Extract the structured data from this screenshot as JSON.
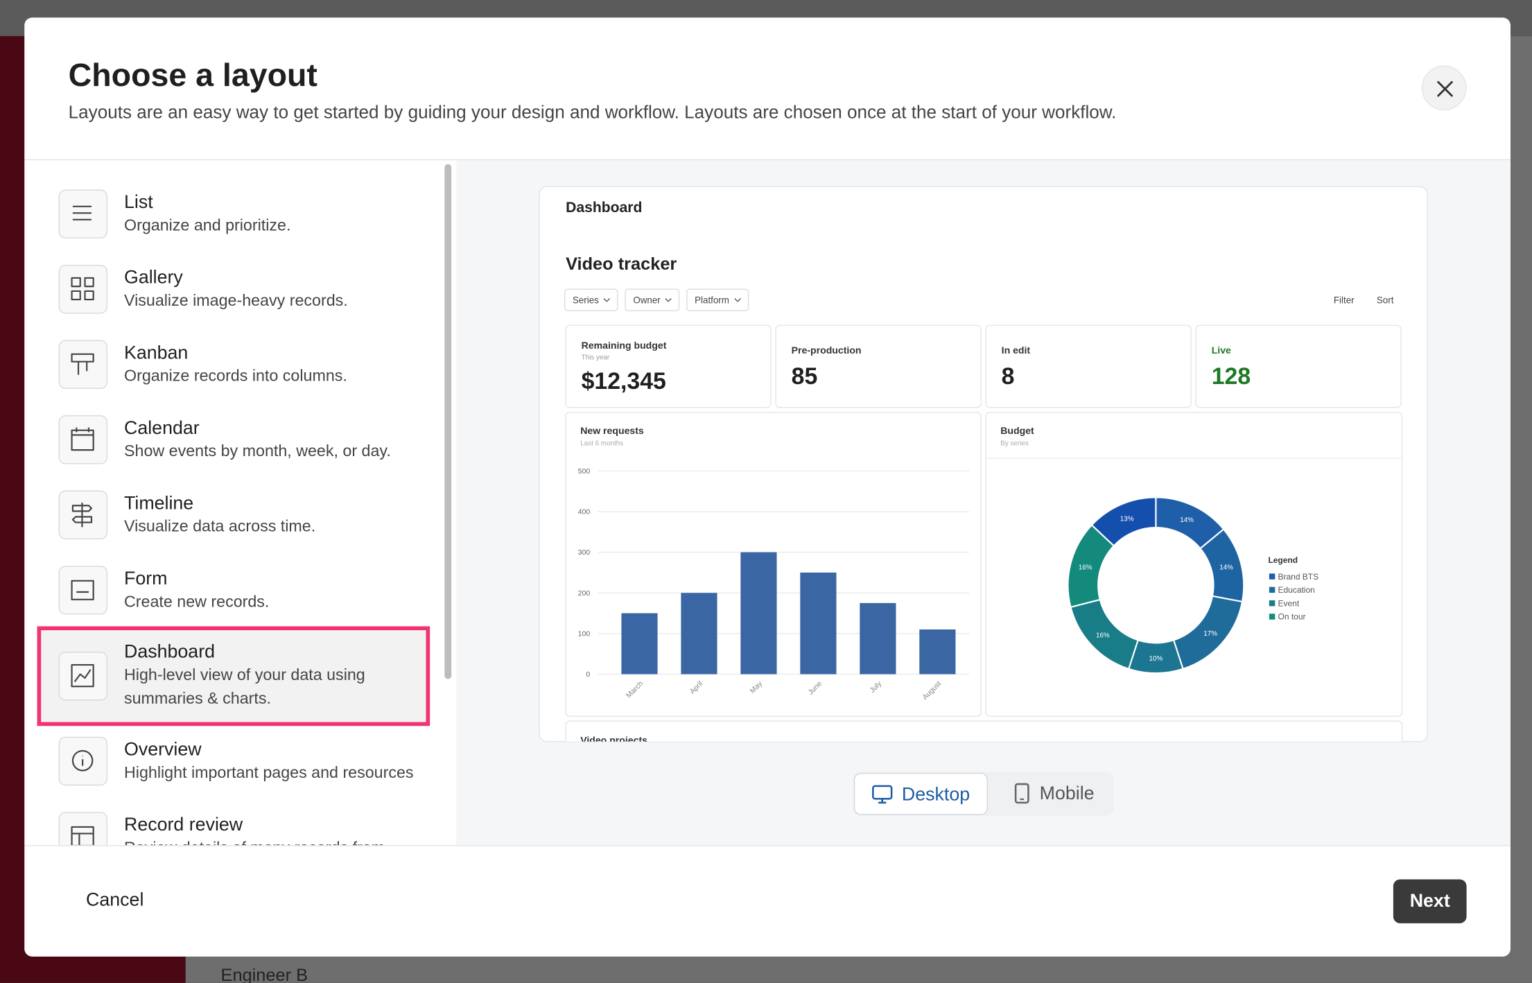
{
  "background": {
    "text": "Engineer B"
  },
  "header": {
    "title": "Choose a layout",
    "subtitle": "Layouts are an easy way to get started by guiding your design and workflow. Layouts are chosen once at the start of your workflow."
  },
  "layouts": [
    {
      "title": "List",
      "description": "Organize and prioritize."
    },
    {
      "title": "Gallery",
      "description": "Visualize image-heavy records."
    },
    {
      "title": "Kanban",
      "description": "Organize records into columns."
    },
    {
      "title": "Calendar",
      "description": "Show events by month, week, or day."
    },
    {
      "title": "Timeline",
      "description": "Visualize data across time."
    },
    {
      "title": "Form",
      "description": "Create new records."
    },
    {
      "title": "Dashboard",
      "description": "High-level view of your data using summaries & charts."
    },
    {
      "title": "Overview",
      "description": "Highlight important pages and resources"
    },
    {
      "title": "Record review",
      "description": "Review details of many records from"
    }
  ],
  "preview": {
    "page_title": "Dashboard",
    "heading": "Video tracker",
    "filters": [
      "Series",
      "Owner",
      "Platform"
    ],
    "actions": [
      "Filter",
      "Sort"
    ],
    "stats": [
      {
        "label": "Remaining budget",
        "sublabel": "This year",
        "value": "$12,345"
      },
      {
        "label": "Pre-production",
        "value": "85"
      },
      {
        "label": "In edit",
        "value": "8"
      },
      {
        "label": "Live",
        "value": "128",
        "color": "#1d7a22"
      }
    ],
    "bar_chart": {
      "type": "bar",
      "title": "New requests",
      "subtitle": "Last 6 months",
      "categories": [
        "March",
        "April",
        "May",
        "June",
        "July",
        "August"
      ],
      "values": [
        150,
        200,
        300,
        250,
        175,
        110
      ],
      "color": "#3a66a3",
      "ylim": [
        0,
        500
      ],
      "yticks": [
        0,
        100,
        200,
        300,
        400,
        500
      ],
      "grid": true
    },
    "donut_chart": {
      "type": "pie",
      "title": "Budget",
      "subtitle": "By series",
      "values": [
        14,
        14,
        17,
        10,
        16,
        16,
        13
      ],
      "value_labels": [
        "14%",
        "14%",
        "17%",
        "10%",
        "16%",
        "16%",
        "13%"
      ],
      "colors": [
        "#1f5ea8",
        "#1f64a2",
        "#1f6c9a",
        "#1c7591",
        "#197d88",
        "#138a7b",
        "#154fae"
      ],
      "legend_title": "Legend",
      "legend": [
        {
          "name": "Brand BTS",
          "color": "#1f5ea8"
        },
        {
          "name": "Education",
          "color": "#1f6c9a"
        },
        {
          "name": "Event",
          "color": "#197d88"
        },
        {
          "name": "On tour",
          "color": "#138a7b"
        }
      ]
    },
    "next_section": "Video projects"
  },
  "view_toggle": [
    "Desktop",
    "Mobile"
  ],
  "footer": {
    "cancel": "Cancel",
    "next": "Next"
  }
}
